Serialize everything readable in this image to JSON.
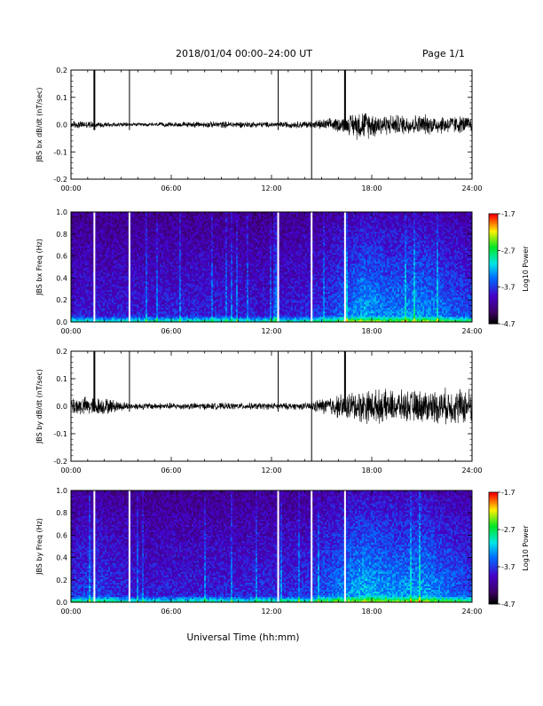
{
  "header": {
    "date_text": "2018/01/04   00:00–24:00 UT",
    "page_text": "Page 1/1"
  },
  "xaxis": {
    "label": "Universal Time (hh:mm)",
    "ticks": [
      "00:00",
      "06:00",
      "12:00",
      "18:00",
      "24:00"
    ]
  },
  "chart_data": [
    {
      "type": "line",
      "ylabel": "JBS bx dB/dt (nT/sec)",
      "xlim_hours": [
        0,
        24
      ],
      "ylim": [
        -0.2,
        0.2
      ],
      "yticks": [
        "0.2",
        "0.1",
        "0.0",
        "-0.1",
        "-0.2"
      ],
      "noise_amplitude_profile": [
        {
          "hour": 0,
          "amp": 0.012
        },
        {
          "hour": 4,
          "amp": 0.005
        },
        {
          "hour": 9,
          "amp": 0.01
        },
        {
          "hour": 12,
          "amp": 0.008
        },
        {
          "hour": 14.5,
          "amp": 0.012
        },
        {
          "hour": 16.5,
          "amp": 0.025
        },
        {
          "hour": 17.2,
          "amp": 0.045
        },
        {
          "hour": 19,
          "amp": 0.03
        },
        {
          "hour": 21,
          "amp": 0.03
        },
        {
          "hour": 24,
          "amp": 0.025
        }
      ],
      "spikes": [
        {
          "hour": 1.4,
          "low": -0.02,
          "high": 0.2
        },
        {
          "hour": 3.5,
          "low": -0.02,
          "high": 0.2
        },
        {
          "hour": 12.4,
          "low": -0.02,
          "high": 0.2
        },
        {
          "hour": 14.4,
          "low": -0.2,
          "high": 0.2
        },
        {
          "hour": 16.4,
          "low": -0.02,
          "high": 0.2
        }
      ]
    },
    {
      "type": "heatmap",
      "ylabel": "JBS bx Freq (Hz)",
      "xlim_hours": [
        0,
        24
      ],
      "ylim": [
        0.0,
        1.0
      ],
      "yticks": [
        "1.0",
        "0.8",
        "0.6",
        "0.4",
        "0.2",
        "0.0"
      ],
      "colorbar": {
        "label": "Log10 Power",
        "ticks": [
          "-1.7",
          "-2.7",
          "-3.7",
          "-4.7"
        ],
        "range": [
          -4.7,
          -1.7
        ]
      },
      "gaps_hours": [
        1.4,
        3.5,
        12.4,
        14.4,
        16.4
      ],
      "activity_profile": [
        {
          "hour": 0,
          "level": 0.2
        },
        {
          "hour": 8,
          "level": 0.25
        },
        {
          "hour": 12,
          "level": 0.2
        },
        {
          "hour": 15,
          "level": 0.3
        },
        {
          "hour": 17.5,
          "level": 0.6
        },
        {
          "hour": 19,
          "level": 0.5
        },
        {
          "hour": 21,
          "level": 0.55
        },
        {
          "hour": 24,
          "level": 0.35
        }
      ]
    },
    {
      "type": "line",
      "ylabel": "JBS by dB/dt (nT/sec)",
      "xlim_hours": [
        0,
        24
      ],
      "ylim": [
        -0.2,
        0.2
      ],
      "yticks": [
        "0.2",
        "0.1",
        "0.0",
        "-0.1",
        "-0.2"
      ],
      "noise_amplitude_profile": [
        {
          "hour": 0,
          "amp": 0.03
        },
        {
          "hour": 2,
          "amp": 0.025
        },
        {
          "hour": 3.5,
          "amp": 0.01
        },
        {
          "hour": 8,
          "amp": 0.01
        },
        {
          "hour": 14,
          "amp": 0.01
        },
        {
          "hour": 16,
          "amp": 0.035
        },
        {
          "hour": 17.5,
          "amp": 0.05
        },
        {
          "hour": 20,
          "amp": 0.045
        },
        {
          "hour": 24,
          "amp": 0.055
        }
      ],
      "spikes": [
        {
          "hour": 1.4,
          "low": -0.02,
          "high": 0.2
        },
        {
          "hour": 3.5,
          "low": -0.02,
          "high": 0.2
        },
        {
          "hour": 12.4,
          "low": -0.02,
          "high": 0.2
        },
        {
          "hour": 14.4,
          "low": -0.2,
          "high": 0.2
        },
        {
          "hour": 16.4,
          "low": -0.02,
          "high": 0.2
        }
      ]
    },
    {
      "type": "heatmap",
      "ylabel": "JBS by Freq (Hz)",
      "xlim_hours": [
        0,
        24
      ],
      "ylim": [
        0.0,
        1.0
      ],
      "yticks": [
        "1.0",
        "0.8",
        "0.6",
        "0.4",
        "0.2",
        "0.0"
      ],
      "colorbar": {
        "label": "Log10 Power",
        "ticks": [
          "-1.7",
          "-2.7",
          "-3.7",
          "-4.7"
        ],
        "range": [
          -4.7,
          -1.7
        ]
      },
      "gaps_hours": [
        1.4,
        3.5,
        12.4,
        14.4,
        16.4
      ],
      "activity_profile": [
        {
          "hour": 0,
          "level": 0.3
        },
        {
          "hour": 1.5,
          "level": 0.35
        },
        {
          "hour": 4,
          "level": 0.22
        },
        {
          "hour": 10,
          "level": 0.25
        },
        {
          "hour": 14,
          "level": 0.3
        },
        {
          "hour": 17.5,
          "level": 0.65
        },
        {
          "hour": 19.5,
          "level": 0.55
        },
        {
          "hour": 21,
          "level": 0.6
        },
        {
          "hour": 24,
          "level": 0.35
        }
      ]
    }
  ],
  "colors": {
    "trace": "#000000",
    "gap": "#ffffff",
    "background": "#ffffff"
  }
}
